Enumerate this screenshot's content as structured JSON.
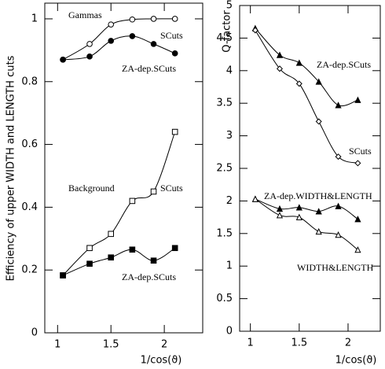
{
  "chart_data": [
    {
      "type": "line",
      "y_label": "Efficiency of upper WIDTH and LENGTH cuts",
      "x_label": "1/cos(ϑ)",
      "annotations": [
        "Gammas",
        "Background"
      ],
      "x": [
        1.05,
        1.3,
        1.5,
        1.7,
        1.9,
        2.1
      ],
      "xlim": [
        0.88,
        2.36
      ],
      "xticks": [
        1,
        1.5,
        2
      ],
      "ylim": [
        0,
        1.05
      ],
      "yticks": [
        0,
        0.2,
        0.4,
        0.6,
        0.8,
        1
      ],
      "series": [
        {
          "name": "SCuts",
          "color": "#000000",
          "marker": "open-circle",
          "values": [
            0.87,
            0.92,
            0.982,
            0.998,
            1.0,
            1.0
          ]
        },
        {
          "name": "ZA-dep.SCuts",
          "color": "#000000",
          "marker": "filled-circle",
          "values": [
            0.87,
            0.88,
            0.93,
            0.945,
            0.92,
            0.89
          ]
        },
        {
          "name": "SCuts",
          "color": "#000000",
          "marker": "open-square",
          "values": [
            0.183,
            0.27,
            0.315,
            0.42,
            0.45,
            0.64
          ]
        },
        {
          "name": "ZA-dep.SCuts",
          "color": "#000000",
          "marker": "filled-square",
          "values": [
            0.183,
            0.22,
            0.24,
            0.265,
            0.23,
            0.27
          ]
        }
      ]
    },
    {
      "type": "line",
      "y_label": "Q-factor",
      "x_label": "1/cos(ϑ)",
      "x": [
        1.05,
        1.3,
        1.5,
        1.7,
        1.9,
        2.1
      ],
      "xlim": [
        0.89,
        2.33
      ],
      "xticks": [
        1,
        1.5,
        2
      ],
      "ylim": [
        0,
        5
      ],
      "yticks": [
        0,
        0.5,
        1,
        1.5,
        2,
        2.5,
        3,
        3.5,
        4,
        4.5,
        5
      ],
      "series": [
        {
          "name": "ZA-dep.SCuts",
          "color": "#000000",
          "marker": "filled-triangle",
          "values": [
            4.65,
            4.24,
            4.12,
            3.83,
            3.47,
            3.55
          ]
        },
        {
          "name": "SCuts",
          "color": "#000000",
          "marker": "open-diamond",
          "values": [
            4.62,
            4.03,
            3.8,
            3.22,
            2.68,
            2.58
          ]
        },
        {
          "name": "ZA-dep.WIDTH&LENGTH",
          "color": "#000000",
          "marker": "filled-triangle",
          "values": [
            2.03,
            1.88,
            1.9,
            1.84,
            1.92,
            1.72
          ]
        },
        {
          "name": "WIDTH&LENGTH",
          "color": "#000000",
          "marker": "open-triangle",
          "values": [
            2.03,
            1.78,
            1.75,
            1.53,
            1.48,
            1.25
          ]
        }
      ]
    }
  ]
}
